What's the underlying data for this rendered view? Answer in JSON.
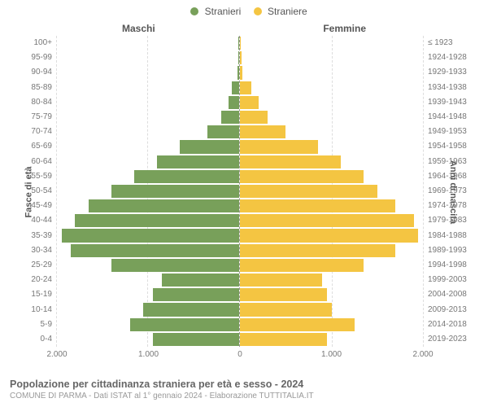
{
  "chart": {
    "type": "population-pyramid",
    "legend": [
      {
        "label": "Stranieri",
        "color": "#78a05a"
      },
      {
        "label": "Straniere",
        "color": "#f4c542"
      }
    ],
    "column_titles": {
      "left": "Maschi",
      "right": "Femmine"
    },
    "y_left_title": "Fasce di età",
    "y_right_title": "Anni di nascita",
    "x_ticks": [
      "2.000",
      "1.000",
      "0",
      "1.000",
      "2.000"
    ],
    "x_max": 2000,
    "bar_colors": {
      "male": "#78a05a",
      "female": "#f4c542"
    },
    "grid_color": "#dddddd",
    "center_line_color": "#999999",
    "background": "#ffffff",
    "label_fontsize": 10,
    "age_groups": [
      "0-4",
      "5-9",
      "10-14",
      "15-19",
      "20-24",
      "25-29",
      "30-34",
      "35-39",
      "40-44",
      "45-49",
      "50-54",
      "55-59",
      "60-64",
      "65-69",
      "70-74",
      "75-79",
      "80-84",
      "85-89",
      "90-94",
      "95-99",
      "100+"
    ],
    "birth_years": [
      "2019-2023",
      "2014-2018",
      "2009-2013",
      "2004-2008",
      "1999-2003",
      "1994-1998",
      "1989-1993",
      "1984-1988",
      "1979-1983",
      "1974-1978",
      "1969-1973",
      "1964-1968",
      "1959-1963",
      "1954-1958",
      "1949-1953",
      "1944-1948",
      "1939-1943",
      "1934-1938",
      "1929-1933",
      "1924-1928",
      "≤ 1923"
    ],
    "male": [
      950,
      1200,
      1050,
      950,
      850,
      1400,
      1850,
      1950,
      1800,
      1650,
      1400,
      1150,
      900,
      650,
      350,
      200,
      120,
      80,
      20,
      10,
      5
    ],
    "female": [
      950,
      1250,
      1000,
      950,
      900,
      1350,
      1700,
      1950,
      1900,
      1700,
      1500,
      1350,
      1100,
      850,
      500,
      300,
      200,
      120,
      30,
      15,
      5
    ]
  },
  "footer": {
    "title": "Popolazione per cittadinanza straniera per età e sesso - 2024",
    "subtitle": "COMUNE DI PARMA - Dati ISTAT al 1° gennaio 2024 - Elaborazione TUTTITALIA.IT"
  }
}
